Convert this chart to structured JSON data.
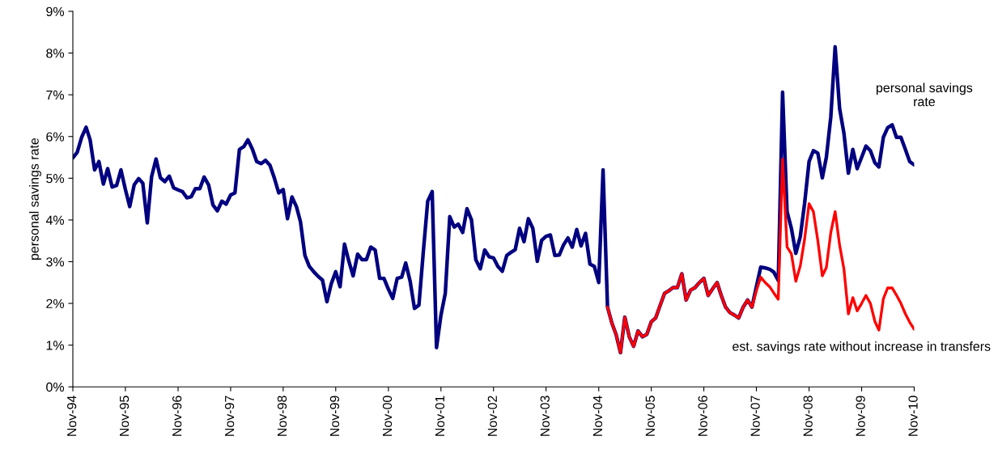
{
  "chart_data": {
    "type": "line",
    "ylabel": "personal savings rate",
    "xlim": [
      "1994-11",
      "2010-11"
    ],
    "xticks": [
      {
        "value": "1994-11",
        "label": "Nov-94"
      },
      {
        "value": "1995-11",
        "label": "Nov-95"
      },
      {
        "value": "1996-11",
        "label": "Nov-96"
      },
      {
        "value": "1997-11",
        "label": "Nov-97"
      },
      {
        "value": "1998-11",
        "label": "Nov-98"
      },
      {
        "value": "1999-11",
        "label": "Nov-99"
      },
      {
        "value": "2000-11",
        "label": "Nov-00"
      },
      {
        "value": "2001-11",
        "label": "Nov-01"
      },
      {
        "value": "2002-11",
        "label": "Nov-02"
      },
      {
        "value": "2003-11",
        "label": "Nov-03"
      },
      {
        "value": "2004-11",
        "label": "Nov-04"
      },
      {
        "value": "2005-11",
        "label": "Nov-05"
      },
      {
        "value": "2006-11",
        "label": "Nov-06"
      },
      {
        "value": "2007-11",
        "label": "Nov-07"
      },
      {
        "value": "2008-11",
        "label": "Nov-08"
      },
      {
        "value": "2009-11",
        "label": "Nov-09"
      },
      {
        "value": "2010-11",
        "label": "Nov-10"
      }
    ],
    "ylim": [
      0,
      9
    ],
    "yticks": [
      {
        "value": 0,
        "label": "0%"
      },
      {
        "value": 1,
        "label": "1%"
      },
      {
        "value": 2,
        "label": "2%"
      },
      {
        "value": 3,
        "label": "3%"
      },
      {
        "value": 4,
        "label": "4%"
      },
      {
        "value": 5,
        "label": "5%"
      },
      {
        "value": 6,
        "label": "6%"
      },
      {
        "value": 7,
        "label": "7%"
      },
      {
        "value": 8,
        "label": "8%"
      },
      {
        "value": 9,
        "label": "9%"
      }
    ],
    "grid": false,
    "line_style": "solid",
    "marker": "none",
    "series": [
      {
        "name": "personal savings\nrate",
        "color": "#000080",
        "x": [
          "1994-11",
          "1994-12",
          "1995-01",
          "1995-02",
          "1995-03",
          "1995-04",
          "1995-05",
          "1995-06",
          "1995-07",
          "1995-08",
          "1995-09",
          "1995-10",
          "1995-11",
          "1995-12",
          "1996-01",
          "1996-02",
          "1996-03",
          "1996-04",
          "1996-05",
          "1996-06",
          "1996-07",
          "1996-08",
          "1996-09",
          "1996-10",
          "1996-11",
          "1996-12",
          "1997-01",
          "1997-02",
          "1997-03",
          "1997-04",
          "1997-05",
          "1997-06",
          "1997-07",
          "1997-08",
          "1997-09",
          "1997-10",
          "1997-11",
          "1997-12",
          "1998-01",
          "1998-02",
          "1998-03",
          "1998-04",
          "1998-05",
          "1998-06",
          "1998-07",
          "1998-08",
          "1998-09",
          "1998-10",
          "1998-11",
          "1998-12",
          "1999-01",
          "1999-02",
          "1999-03",
          "1999-04",
          "1999-05",
          "1999-06",
          "1999-07",
          "1999-08",
          "1999-09",
          "1999-10",
          "1999-11",
          "1999-12",
          "2000-01",
          "2000-02",
          "2000-03",
          "2000-04",
          "2000-05",
          "2000-06",
          "2000-07",
          "2000-08",
          "2000-09",
          "2000-10",
          "2000-11",
          "2000-12",
          "2001-01",
          "2001-02",
          "2001-03",
          "2001-04",
          "2001-05",
          "2001-06",
          "2001-07",
          "2001-08",
          "2001-09",
          "2001-10",
          "2001-11",
          "2001-12",
          "2002-01",
          "2002-02",
          "2002-03",
          "2002-04",
          "2002-05",
          "2002-06",
          "2002-07",
          "2002-08",
          "2002-09",
          "2002-10",
          "2002-11",
          "2002-12",
          "2003-01",
          "2003-02",
          "2003-03",
          "2003-04",
          "2003-05",
          "2003-06",
          "2003-07",
          "2003-08",
          "2003-09",
          "2003-10",
          "2003-11",
          "2003-12",
          "2004-01",
          "2004-02",
          "2004-03",
          "2004-04",
          "2004-05",
          "2004-06",
          "2004-07",
          "2004-08",
          "2004-09",
          "2004-10",
          "2004-11",
          "2004-12",
          "2005-01",
          "2005-02",
          "2005-03",
          "2005-04",
          "2005-05",
          "2005-06",
          "2005-07",
          "2005-08",
          "2005-09",
          "2005-10",
          "2005-11",
          "2005-12",
          "2006-01",
          "2006-02",
          "2006-03",
          "2006-04",
          "2006-05",
          "2006-06",
          "2006-07",
          "2006-08",
          "2006-09",
          "2006-10",
          "2006-11",
          "2006-12",
          "2007-01",
          "2007-02",
          "2007-03",
          "2007-04",
          "2007-05",
          "2007-06",
          "2007-07",
          "2007-08",
          "2007-09",
          "2007-10",
          "2007-11",
          "2007-12",
          "2008-01",
          "2008-02",
          "2008-03",
          "2008-04",
          "2008-05",
          "2008-06",
          "2008-07",
          "2008-08",
          "2008-09",
          "2008-10",
          "2008-11",
          "2008-12",
          "2009-01",
          "2009-02",
          "2009-03",
          "2009-04",
          "2009-05",
          "2009-06",
          "2009-07",
          "2009-08",
          "2009-09",
          "2009-10",
          "2009-11",
          "2009-12",
          "2010-01",
          "2010-02",
          "2010-03",
          "2010-04",
          "2010-05",
          "2010-06",
          "2010-07",
          "2010-08",
          "2010-09",
          "2010-10",
          "2010-11"
        ],
        "values": [
          5.49,
          5.62,
          5.98,
          6.22,
          5.92,
          5.2,
          5.4,
          4.86,
          5.23,
          4.79,
          4.83,
          5.2,
          4.73,
          4.32,
          4.84,
          4.99,
          4.88,
          3.93,
          5.04,
          5.46,
          5.01,
          4.92,
          5.05,
          4.77,
          4.72,
          4.68,
          4.53,
          4.56,
          4.75,
          4.75,
          5.03,
          4.84,
          4.36,
          4.22,
          4.45,
          4.38,
          4.6,
          4.65,
          5.69,
          5.76,
          5.92,
          5.7,
          5.4,
          5.35,
          5.43,
          5.31,
          5.0,
          4.65,
          4.73,
          4.03,
          4.55,
          4.32,
          3.96,
          3.15,
          2.89,
          2.76,
          2.65,
          2.56,
          2.04,
          2.47,
          2.76,
          2.4,
          3.42,
          3.0,
          2.66,
          3.18,
          3.05,
          3.05,
          3.35,
          3.28,
          2.6,
          2.6,
          2.34,
          2.12,
          2.6,
          2.63,
          2.97,
          2.53,
          1.88,
          1.96,
          3.22,
          4.45,
          4.68,
          0.94,
          1.72,
          2.24,
          4.08,
          3.83,
          3.9,
          3.7,
          4.27,
          4.0,
          3.05,
          2.83,
          3.28,
          3.12,
          3.09,
          2.89,
          2.77,
          3.15,
          3.22,
          3.29,
          3.8,
          3.48,
          4.03,
          3.8,
          3.01,
          3.51,
          3.61,
          3.64,
          3.15,
          3.16,
          3.4,
          3.57,
          3.35,
          3.77,
          3.38,
          3.68,
          2.94,
          2.89,
          2.5,
          5.2,
          1.91,
          1.52,
          1.26,
          0.82,
          1.67,
          1.2,
          0.97,
          1.34,
          1.2,
          1.26,
          1.56,
          1.65,
          1.95,
          2.24,
          2.3,
          2.38,
          2.38,
          2.71,
          2.08,
          2.32,
          2.38,
          2.5,
          2.6,
          2.19,
          2.35,
          2.5,
          2.2,
          1.91,
          1.78,
          1.72,
          1.65,
          1.91,
          2.08,
          1.91,
          2.4,
          2.87,
          2.85,
          2.82,
          2.75,
          2.55,
          7.06,
          4.2,
          3.8,
          3.2,
          3.6,
          4.4,
          5.4,
          5.66,
          5.6,
          5.01,
          5.5,
          6.47,
          8.15,
          6.67,
          6.08,
          5.12,
          5.69,
          5.23,
          5.5,
          5.77,
          5.66,
          5.37,
          5.27,
          5.98,
          6.21,
          6.28,
          5.98,
          5.98,
          5.69,
          5.4,
          5.32
        ]
      },
      {
        "name": "est. savings rate without increase in transfers",
        "color": "#ff0000",
        "x": [
          "2005-01",
          "2005-02",
          "2005-03",
          "2005-04",
          "2005-05",
          "2005-06",
          "2005-07",
          "2005-08",
          "2005-09",
          "2005-10",
          "2005-11",
          "2005-12",
          "2006-01",
          "2006-02",
          "2006-03",
          "2006-04",
          "2006-05",
          "2006-06",
          "2006-07",
          "2006-08",
          "2006-09",
          "2006-10",
          "2006-11",
          "2006-12",
          "2007-01",
          "2007-02",
          "2007-03",
          "2007-04",
          "2007-05",
          "2007-06",
          "2007-07",
          "2007-08",
          "2007-09",
          "2007-10",
          "2007-11",
          "2007-12",
          "2008-01",
          "2008-02",
          "2008-03",
          "2008-04",
          "2008-05",
          "2008-06",
          "2008-07",
          "2008-08",
          "2008-09",
          "2008-10",
          "2008-11",
          "2008-12",
          "2009-01",
          "2009-02",
          "2009-03",
          "2009-04",
          "2009-05",
          "2009-06",
          "2009-07",
          "2009-08",
          "2009-09",
          "2009-10",
          "2009-11",
          "2009-12",
          "2010-01",
          "2010-02",
          "2010-03",
          "2010-04",
          "2010-05",
          "2010-06",
          "2010-07",
          "2010-08",
          "2010-09",
          "2010-10",
          "2010-11"
        ],
        "values": [
          1.91,
          1.52,
          1.26,
          0.82,
          1.67,
          1.2,
          0.97,
          1.34,
          1.2,
          1.26,
          1.56,
          1.65,
          1.95,
          2.24,
          2.3,
          2.38,
          2.38,
          2.71,
          2.08,
          2.32,
          2.38,
          2.5,
          2.6,
          2.19,
          2.35,
          2.5,
          2.2,
          1.91,
          1.78,
          1.72,
          1.65,
          1.91,
          2.08,
          1.91,
          2.3,
          2.63,
          2.5,
          2.4,
          2.25,
          2.1,
          5.46,
          3.35,
          3.19,
          2.53,
          2.9,
          3.54,
          4.39,
          4.2,
          3.5,
          2.66,
          2.86,
          3.7,
          4.2,
          3.4,
          2.83,
          1.75,
          2.14,
          1.82,
          2.0,
          2.19,
          2.0,
          1.57,
          1.36,
          2.11,
          2.37,
          2.37,
          2.2,
          2.0,
          1.75,
          1.55,
          1.38
        ]
      }
    ]
  }
}
